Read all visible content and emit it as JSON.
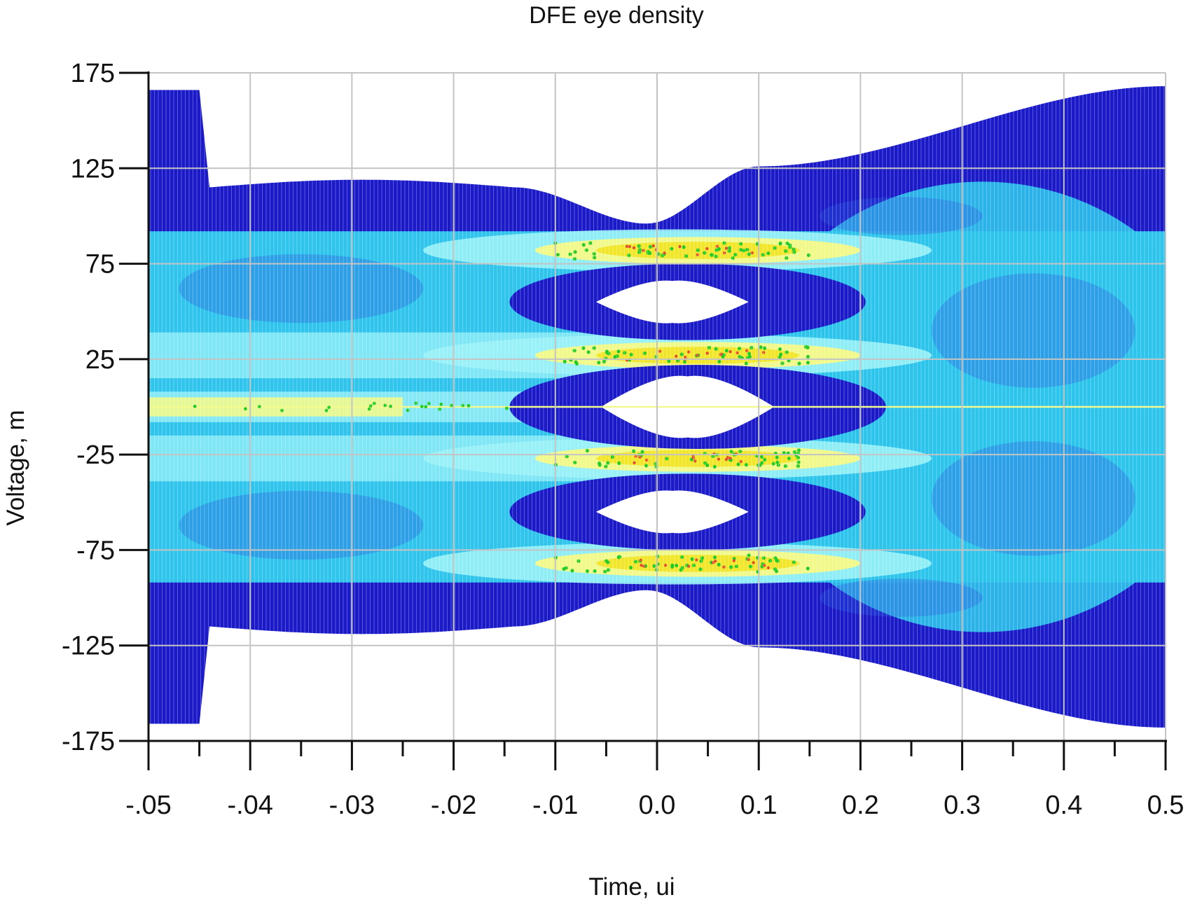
{
  "chart_data": {
    "type": "heatmap",
    "title": "DFE eye density",
    "xlabel": "Time, ui",
    "ylabel": "Voltage, m",
    "x_tick_labels": [
      "-.05",
      "-.04",
      "-.03",
      "-.02",
      "-.01",
      "0.0",
      "0.1",
      "0.2",
      "0.3",
      "0.4",
      "0.5"
    ],
    "y_tick_labels": [
      "175",
      "125",
      "75",
      "25",
      "-25",
      "-75",
      "-125",
      "-175"
    ],
    "y_ticks": [
      175,
      125,
      75,
      25,
      -25,
      -75,
      -125,
      -175
    ],
    "ylim": [
      -175,
      175
    ],
    "grid": true,
    "eye_levels_mV": [
      82,
      27,
      -27,
      -82
    ],
    "eyes": [
      {
        "center_mV": 55,
        "inner_height_mV": 18
      },
      {
        "center_mV": 0,
        "inner_height_mV": 28
      },
      {
        "center_mV": -55,
        "inner_height_mV": 18
      }
    ],
    "colors": {
      "lowest": "#1a1ac8",
      "low": "#2b5de0",
      "mid_low": "#2ec4ec",
      "mid": "#9af2f7",
      "mid_high": "#f0f98a",
      "high": "#f2e62b",
      "higher": "#22cc22",
      "highest": "#e2502a",
      "grid": "#c4c4c4",
      "background": "#ffffff"
    }
  }
}
